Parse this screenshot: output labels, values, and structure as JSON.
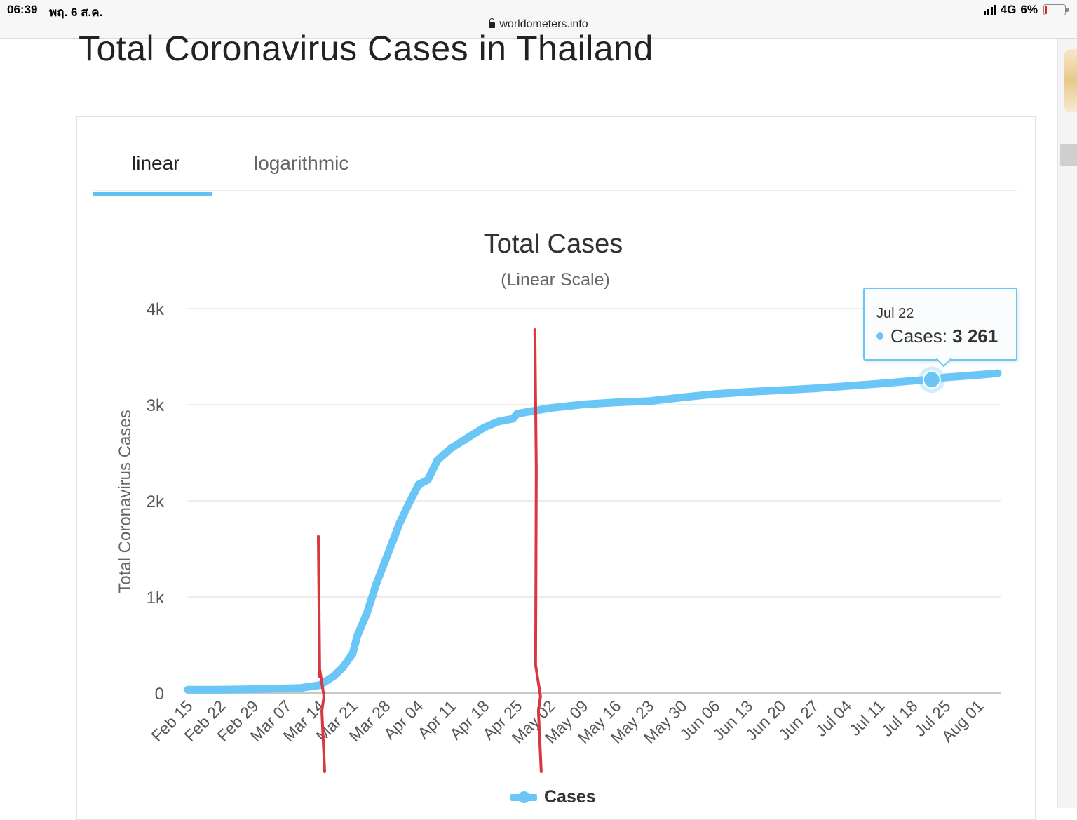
{
  "status_bar": {
    "time": "06:39",
    "date": "พฤ. 6 ส.ค.",
    "network": "4G",
    "battery": "6%"
  },
  "browser": {
    "url": "worldometers.info"
  },
  "page": {
    "title": "Total Coronavirus Cases in Thailand"
  },
  "tabs": [
    {
      "label": "linear",
      "active": true
    },
    {
      "label": "logarithmic",
      "active": false
    }
  ],
  "tooltip": {
    "date": "Jul 22",
    "series_label": "Cases:",
    "value": "3 261"
  },
  "colors": {
    "series": "#6ac6f6",
    "annotation": "#d9363e",
    "grid": "#e6e6e6"
  },
  "chart_data": {
    "type": "line",
    "title": "Total Cases",
    "subtitle": "(Linear Scale)",
    "ylabel": "Total Coronavirus Cases",
    "xlabel": "",
    "ylim": [
      0,
      4000
    ],
    "yticks": [
      "0",
      "1k",
      "2k",
      "3k",
      "4k"
    ],
    "grid": true,
    "legend_position": "bottom-center",
    "x_tick_labels": [
      "Feb 15",
      "Feb 22",
      "Feb 29",
      "Mar 07",
      "Mar 14",
      "Mar 21",
      "Mar 28",
      "Apr 04",
      "Apr 11",
      "Apr 18",
      "Apr 25",
      "May 02",
      "May 09",
      "May 16",
      "May 23",
      "May 30",
      "Jun 06",
      "Jun 13",
      "Jun 20",
      "Jun 27",
      "Jul 04",
      "Jul 11",
      "Jul 18",
      "Jul 25",
      "Aug 01"
    ],
    "series": [
      {
        "name": "Cases",
        "x": [
          "Feb 15",
          "Feb 22",
          "Feb 29",
          "Mar 07",
          "Mar 10",
          "Mar 14",
          "Mar 17",
          "Mar 19",
          "Mar 21",
          "Mar 22",
          "Mar 24",
          "Mar 26",
          "Mar 28",
          "Mar 31",
          "Apr 02",
          "Apr 04",
          "Apr 06",
          "Apr 08",
          "Apr 11",
          "Apr 14",
          "Apr 18",
          "Apr 21",
          "Apr 24",
          "Apr 25",
          "May 02",
          "May 09",
          "May 16",
          "May 23",
          "May 30",
          "Jun 06",
          "Jun 13",
          "Jun 20",
          "Jun 27",
          "Jul 04",
          "Jul 11",
          "Jul 18",
          "Jul 22",
          "Jul 25",
          "Aug 01",
          "Aug 05"
        ],
        "values": [
          34,
          35,
          40,
          48,
          53,
          82,
          177,
          272,
          411,
          599,
          827,
          1136,
          1388,
          1771,
          1978,
          2169,
          2220,
          2423,
          2551,
          2643,
          2765,
          2826,
          2854,
          2907,
          2966,
          3004,
          3025,
          3037,
          3077,
          3112,
          3134,
          3151,
          3169,
          3195,
          3220,
          3250,
          3261,
          3285,
          3310,
          3328
        ]
      }
    ],
    "annotations": [
      {
        "type": "hand-drawn-vertical-line",
        "x": "Mar 14",
        "y_top": 1630
      },
      {
        "type": "hand-drawn-vertical-line",
        "x": "Apr 29",
        "y_top": 3780
      }
    ]
  }
}
